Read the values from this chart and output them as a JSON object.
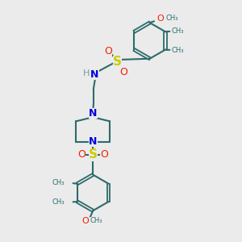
{
  "bg_color": "#ebebeb",
  "lc": "#2d6b6b",
  "nc": "#0000dd",
  "sc": "#cccc00",
  "oc": "#ee2200",
  "hc": "#7a9a9a",
  "lw": 1.5,
  "lw2": 1.3,
  "fs": 8,
  "fsg": 6.5,
  "figsize": [
    3.0,
    3.0
  ],
  "dpi": 100,
  "xlim": [
    0,
    10
  ],
  "ylim": [
    0,
    10
  ]
}
